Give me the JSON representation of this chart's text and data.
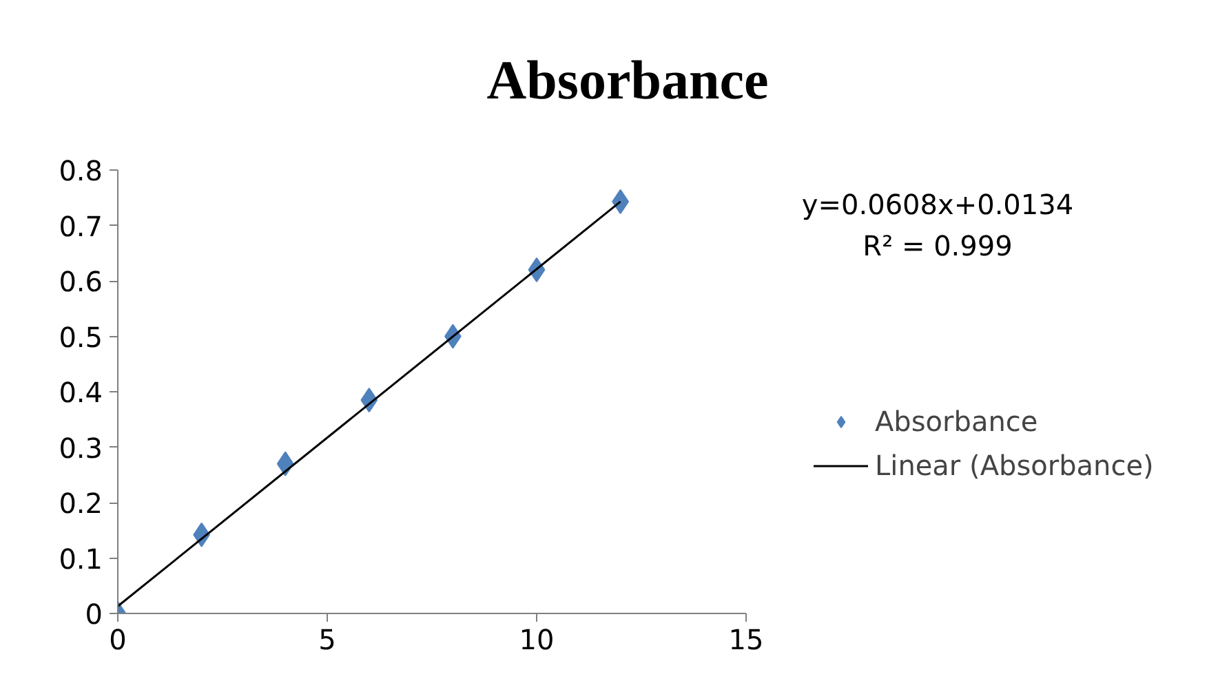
{
  "chart_data": {
    "type": "scatter",
    "title": "Absorbance",
    "x": [
      0,
      2,
      4,
      6,
      8,
      10,
      12
    ],
    "series": [
      {
        "name": "Absorbance",
        "color": "#4f81bd",
        "marker": "diamond",
        "values": [
          0,
          0.142,
          0.27,
          0.385,
          0.5,
          0.62,
          0.743
        ]
      },
      {
        "name": "Linear (Absorbance)",
        "type": "line",
        "color": "#000000",
        "x": [
          0,
          12
        ],
        "values": [
          0.013,
          0.743
        ]
      }
    ],
    "xlim": [
      0,
      15
    ],
    "ylim": [
      0,
      0.8
    ],
    "xticks": [
      0,
      5,
      10,
      15
    ],
    "yticks": [
      0,
      0.1,
      0.2,
      0.3,
      0.4,
      0.5,
      0.6,
      0.7,
      0.8
    ],
    "annotations": [
      "y=0.0608x+0.0134",
      "R² = 0.999"
    ],
    "legend": "right",
    "grid": false
  }
}
